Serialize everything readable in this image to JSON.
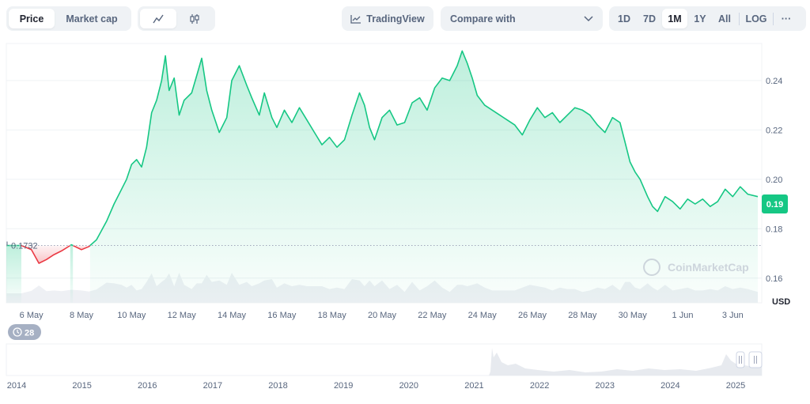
{
  "toolbar": {
    "metric_tabs": [
      {
        "label": "Price",
        "active": true
      },
      {
        "label": "Market cap",
        "active": false
      }
    ],
    "chart_types": [
      {
        "icon": "line-chart-icon",
        "active": true
      },
      {
        "icon": "candlestick-icon",
        "active": false
      }
    ],
    "tradingview_label": "TradingView",
    "compare_label": "Compare with",
    "ranges": [
      {
        "label": "1D",
        "active": false
      },
      {
        "label": "7D",
        "active": false
      },
      {
        "label": "1M",
        "active": true
      },
      {
        "label": "1Y",
        "active": false
      },
      {
        "label": "All",
        "active": false
      },
      {
        "label": "LOG",
        "active": false
      }
    ],
    "more_label": "···"
  },
  "watermark": "CoinMarketCap",
  "currency_label": "USD",
  "event_badge": "28",
  "colors": {
    "up": "#16c784",
    "down": "#ea3943",
    "fill_top": "#c6f0dd",
    "volume": "#eef0f4",
    "navigator": "#e7eaef"
  },
  "chart_data": {
    "type": "line",
    "title": "",
    "xlabel": "",
    "ylabel": "USD",
    "ylim": [
      0.15,
      0.255
    ],
    "yticks": [
      0.16,
      0.18,
      0.2,
      0.22,
      0.24
    ],
    "ytick_labels": [
      "0.16",
      "0.18",
      "0.20",
      "0.22",
      "0.24"
    ],
    "x_range_days": [
      0,
      30
    ],
    "xticks": [
      {
        "day": 1,
        "label": "6 May"
      },
      {
        "day": 3,
        "label": "8 May"
      },
      {
        "day": 5,
        "label": "10 May"
      },
      {
        "day": 7,
        "label": "12 May"
      },
      {
        "day": 9,
        "label": "14 May"
      },
      {
        "day": 11,
        "label": "16 May"
      },
      {
        "day": 13,
        "label": "18 May"
      },
      {
        "day": 15,
        "label": "20 May"
      },
      {
        "day": 17,
        "label": "22 May"
      },
      {
        "day": 19,
        "label": "24 May"
      },
      {
        "day": 21,
        "label": "26 May"
      },
      {
        "day": 23,
        "label": "28 May"
      },
      {
        "day": 25,
        "label": "30 May"
      },
      {
        "day": 27,
        "label": "1 Jun"
      },
      {
        "day": 29,
        "label": "3 Jun"
      }
    ],
    "baseline": {
      "value": 0.1732,
      "label": "0.1732"
    },
    "current_price": {
      "value": 0.19,
      "label": "0.19"
    },
    "series": [
      {
        "points": [
          [
            0.0,
            0.1732
          ],
          [
            0.6,
            0.1732
          ],
          [
            1.0,
            0.1715
          ],
          [
            1.3,
            0.166
          ],
          [
            1.6,
            0.1675
          ],
          [
            1.9,
            0.1695
          ],
          [
            2.2,
            0.171
          ],
          [
            2.6,
            0.1735
          ],
          [
            3.0,
            0.1715
          ],
          [
            3.3,
            0.1728
          ],
          [
            3.6,
            0.1755
          ],
          [
            4.0,
            0.183
          ],
          [
            4.3,
            0.19
          ],
          [
            4.6,
            0.196
          ],
          [
            4.8,
            0.2
          ],
          [
            5.0,
            0.206
          ],
          [
            5.2,
            0.208
          ],
          [
            5.4,
            0.205
          ],
          [
            5.6,
            0.213
          ],
          [
            5.8,
            0.227
          ],
          [
            6.0,
            0.232
          ],
          [
            6.2,
            0.24
          ],
          [
            6.35,
            0.25
          ],
          [
            6.5,
            0.236
          ],
          [
            6.7,
            0.241
          ],
          [
            6.9,
            0.226
          ],
          [
            7.1,
            0.232
          ],
          [
            7.4,
            0.235
          ],
          [
            7.6,
            0.242
          ],
          [
            7.8,
            0.249
          ],
          [
            8.0,
            0.236
          ],
          [
            8.2,
            0.228
          ],
          [
            8.5,
            0.219
          ],
          [
            8.8,
            0.225
          ],
          [
            9.0,
            0.24
          ],
          [
            9.3,
            0.246
          ],
          [
            9.6,
            0.238
          ],
          [
            9.8,
            0.233
          ],
          [
            10.1,
            0.226
          ],
          [
            10.3,
            0.235
          ],
          [
            10.6,
            0.225
          ],
          [
            10.8,
            0.221
          ],
          [
            11.1,
            0.228
          ],
          [
            11.4,
            0.223
          ],
          [
            11.7,
            0.229
          ],
          [
            12.0,
            0.224
          ],
          [
            12.3,
            0.219
          ],
          [
            12.6,
            0.214
          ],
          [
            12.9,
            0.217
          ],
          [
            13.2,
            0.213
          ],
          [
            13.5,
            0.216
          ],
          [
            13.8,
            0.226
          ],
          [
            14.1,
            0.235
          ],
          [
            14.3,
            0.23
          ],
          [
            14.5,
            0.221
          ],
          [
            14.7,
            0.216
          ],
          [
            15.0,
            0.225
          ],
          [
            15.3,
            0.228
          ],
          [
            15.6,
            0.222
          ],
          [
            15.9,
            0.223
          ],
          [
            16.2,
            0.231
          ],
          [
            16.5,
            0.233
          ],
          [
            16.8,
            0.228
          ],
          [
            17.1,
            0.237
          ],
          [
            17.4,
            0.241
          ],
          [
            17.7,
            0.24
          ],
          [
            18.0,
            0.246
          ],
          [
            18.2,
            0.252
          ],
          [
            18.4,
            0.247
          ],
          [
            18.6,
            0.241
          ],
          [
            18.8,
            0.234
          ],
          [
            19.1,
            0.23
          ],
          [
            19.4,
            0.228
          ],
          [
            19.7,
            0.226
          ],
          [
            20.0,
            0.224
          ],
          [
            20.3,
            0.222
          ],
          [
            20.6,
            0.218
          ],
          [
            20.9,
            0.224
          ],
          [
            21.2,
            0.229
          ],
          [
            21.5,
            0.225
          ],
          [
            21.8,
            0.227
          ],
          [
            22.1,
            0.223
          ],
          [
            22.4,
            0.226
          ],
          [
            22.7,
            0.229
          ],
          [
            23.0,
            0.228
          ],
          [
            23.3,
            0.226
          ],
          [
            23.6,
            0.222
          ],
          [
            23.9,
            0.219
          ],
          [
            24.2,
            0.225
          ],
          [
            24.5,
            0.223
          ],
          [
            24.7,
            0.215
          ],
          [
            24.9,
            0.207
          ],
          [
            25.1,
            0.203
          ],
          [
            25.3,
            0.2
          ],
          [
            25.6,
            0.193
          ],
          [
            25.8,
            0.189
          ],
          [
            26.0,
            0.187
          ],
          [
            26.3,
            0.193
          ],
          [
            26.6,
            0.191
          ],
          [
            26.9,
            0.188
          ],
          [
            27.2,
            0.192
          ],
          [
            27.5,
            0.19
          ],
          [
            27.8,
            0.192
          ],
          [
            28.1,
            0.189
          ],
          [
            28.4,
            0.191
          ],
          [
            28.7,
            0.196
          ],
          [
            29.0,
            0.193
          ],
          [
            29.3,
            0.197
          ],
          [
            29.6,
            0.194
          ],
          [
            30.0,
            0.193
          ]
        ]
      }
    ]
  },
  "navigator": {
    "years": [
      "2014",
      "2015",
      "2016",
      "2017",
      "2018",
      "2019",
      "2020",
      "2021",
      "2022",
      "2023",
      "2024",
      "2025"
    ]
  }
}
